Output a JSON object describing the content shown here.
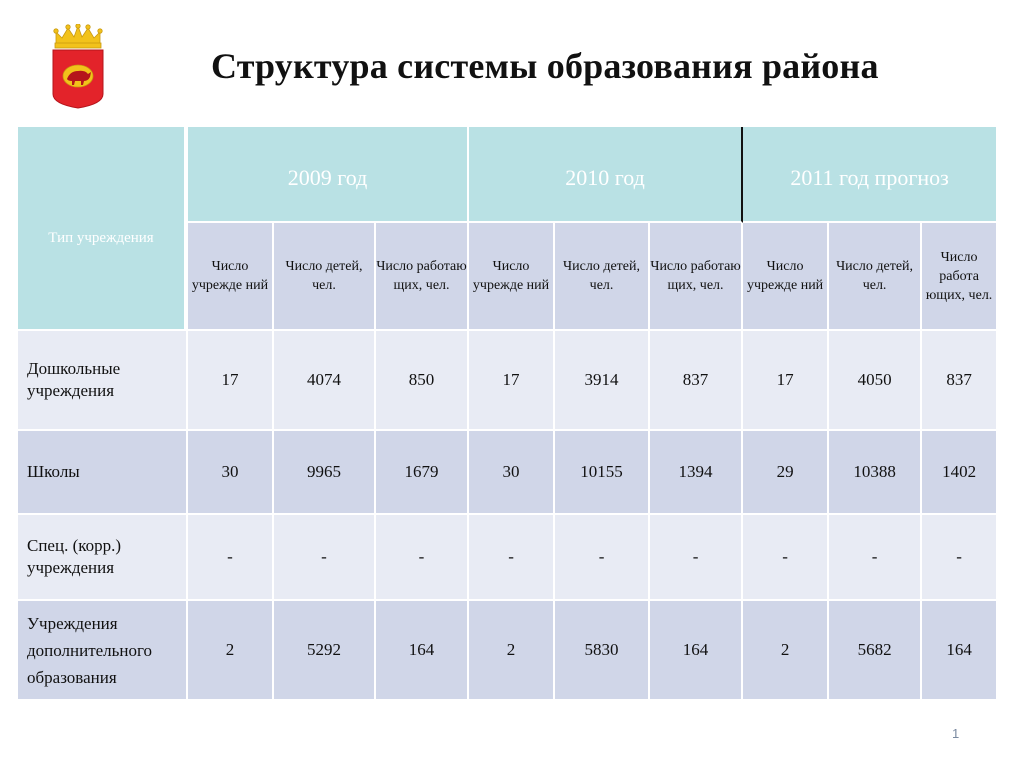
{
  "slide": {
    "title": "Структура системы образования района",
    "page_number": "1"
  },
  "table": {
    "type_header": "Тип учреждения",
    "years": [
      "2009 год",
      "2010 год",
      "2011 год прогноз"
    ],
    "sub_headers": [
      "Число учрежде ний",
      "Число детей, чел.",
      "Число работаю щих, чел.",
      "Число учрежде ний",
      "Число детей, чел.",
      "Число работаю щих, чел.",
      "Число учрежде ний",
      "Число детей, чел.",
      "Число работа ющих, чел."
    ],
    "rows": [
      {
        "label": "Дошкольные учреждения",
        "values": [
          "17",
          "4074",
          "850",
          "17",
          "3914",
          "837",
          "17",
          "4050",
          "837"
        ]
      },
      {
        "label": "Школы",
        "values": [
          "30",
          "9965",
          "1679",
          "30",
          "10155",
          "1394",
          "29",
          "10388",
          "1402"
        ]
      },
      {
        "label": "Спец. (корр.) учреждения",
        "values": [
          "-",
          "-",
          "-",
          "-",
          "-",
          "-",
          "-",
          "-",
          "-"
        ]
      },
      {
        "label": "Учреждения дополнительного образования",
        "values": [
          "2",
          "5292",
          "164",
          "2",
          "5830",
          "164",
          "2",
          "5682",
          "164"
        ]
      }
    ]
  },
  "colors": {
    "header_teal": "#b9e1e4",
    "row_light": "#e8ebf4",
    "row_dark": "#d0d6e8",
    "emblem_red": "#e3232a",
    "emblem_gold": "#f2c21b"
  },
  "icons": {
    "emblem": "coat-of-arms-icon"
  }
}
